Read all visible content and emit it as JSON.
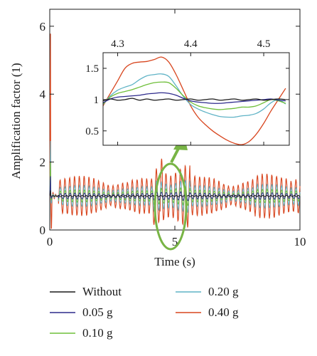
{
  "chart_data": [
    {
      "type": "line",
      "xlabel": "Time (s)",
      "ylabel": "Amplification factor (1)",
      "xlim": [
        0,
        10
      ],
      "ylim": [
        0,
        6.5
      ],
      "xticks": [
        "0",
        "5",
        "10"
      ],
      "yticks": [
        "0",
        "2",
        "4",
        "6"
      ],
      "grid": false,
      "legend_placement": "below",
      "series": [
        {
          "name": "Without",
          "color": "#1a1a1a",
          "amplitude": 0.0
        },
        {
          "name": "0.05 g",
          "color": "#2d2a8c",
          "amplitude": 0.1
        },
        {
          "name": "0.10 g",
          "color": "#6fbf3a",
          "amplitude": 0.2
        },
        {
          "name": "0.20 g",
          "color": "#5fb3c6",
          "amplitude": 0.35
        },
        {
          "name": "0.40 g",
          "color": "#d8461f",
          "amplitude": 0.65
        }
      ],
      "annotations": [
        {
          "type": "ellipse",
          "center_x": 4.8,
          "center_y": 1.05,
          "color": "#78b445"
        },
        {
          "type": "arrow",
          "color": "#78b445",
          "points_to": "inset"
        }
      ]
    },
    {
      "type": "line",
      "role": "inset",
      "xlim": [
        4.28,
        4.535
      ],
      "ylim": [
        0.27,
        1.75
      ],
      "xticks": [
        "4.3",
        "4.4",
        "4.5"
      ],
      "yticks": [
        "0.5",
        "1",
        "1.5"
      ],
      "x": [
        4.28,
        4.29,
        4.3,
        4.31,
        4.32,
        4.33,
        4.34,
        4.35,
        4.36,
        4.37,
        4.38,
        4.39,
        4.4,
        4.41,
        4.42,
        4.43,
        4.44,
        4.45,
        4.46,
        4.47,
        4.48,
        4.49,
        4.5,
        4.51,
        4.52,
        4.53
      ],
      "series": [
        {
          "name": "Without",
          "color": "#1a1a1a",
          "values": [
            0.98,
            1.01,
            0.99,
            1.0,
            1.02,
            0.99,
            1.01,
            0.99,
            1.0,
            1.01,
            0.99,
            1.0,
            1.01,
            0.99,
            1.0,
            1.01,
            0.99,
            1.0,
            1.01,
            0.99,
            1.0,
            1.01,
            0.99,
            1.0,
            1.01,
            1.0
          ]
        },
        {
          "name": "0.05 g",
          "color": "#2d2a8c",
          "values": [
            0.95,
            1.01,
            1.04,
            1.05,
            1.06,
            1.07,
            1.09,
            1.1,
            1.11,
            1.1,
            1.07,
            1.02,
            0.98,
            0.96,
            0.95,
            0.94,
            0.94,
            0.95,
            0.96,
            0.97,
            0.98,
            0.99,
            1.0,
            1.01,
            0.99,
            0.98
          ]
        },
        {
          "name": "0.10 g",
          "color": "#6fbf3a",
          "values": [
            0.93,
            1.04,
            1.1,
            1.13,
            1.16,
            1.2,
            1.24,
            1.27,
            1.28,
            1.27,
            1.18,
            1.06,
            0.96,
            0.9,
            0.87,
            0.85,
            0.84,
            0.85,
            0.86,
            0.88,
            0.88,
            0.9,
            0.95,
            1.0,
            0.98,
            0.94
          ]
        },
        {
          "name": "0.20 g",
          "color": "#5fb3c6",
          "values": [
            0.92,
            1.06,
            1.15,
            1.2,
            1.24,
            1.32,
            1.38,
            1.4,
            1.41,
            1.37,
            1.22,
            1.05,
            0.92,
            0.85,
            0.8,
            0.76,
            0.73,
            0.72,
            0.72,
            0.74,
            0.75,
            0.78,
            0.85,
            0.95,
            1.0,
            0.93
          ]
        },
        {
          "name": "0.40 g",
          "color": "#d8461f",
          "values": [
            0.9,
            1.1,
            1.3,
            1.5,
            1.58,
            1.6,
            1.61,
            1.64,
            1.68,
            1.6,
            1.4,
            1.15,
            0.9,
            0.72,
            0.6,
            0.5,
            0.42,
            0.35,
            0.3,
            0.28,
            0.33,
            0.45,
            0.62,
            0.82,
            1.0,
            1.18
          ]
        }
      ]
    }
  ]
}
